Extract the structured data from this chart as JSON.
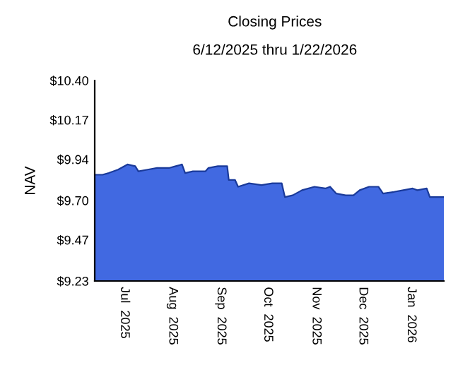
{
  "chart_data": {
    "type": "area",
    "title": "Closing Prices",
    "subtitle": "6/12/2025 thru 1/22/2026",
    "ylabel": "NAV",
    "x": [
      "2025-06-12",
      "2025-06-17",
      "2025-06-21",
      "2025-06-27",
      "2025-07-03",
      "2025-07-08",
      "2025-07-10",
      "2025-07-16",
      "2025-07-22",
      "2025-07-30",
      "2025-08-03",
      "2025-08-07",
      "2025-08-09",
      "2025-08-14",
      "2025-08-22",
      "2025-08-24",
      "2025-08-30",
      "2025-09-05",
      "2025-09-06",
      "2025-09-10",
      "2025-09-12",
      "2025-09-19",
      "2025-09-27",
      "2025-10-04",
      "2025-10-10",
      "2025-10-12",
      "2025-10-17",
      "2025-10-23",
      "2025-10-31",
      "2025-11-07",
      "2025-11-10",
      "2025-11-14",
      "2025-11-20",
      "2025-11-25",
      "2025-11-29",
      "2025-12-05",
      "2025-12-11",
      "2025-12-14",
      "2025-12-21",
      "2025-12-27",
      "2026-01-02",
      "2026-01-05",
      "2026-01-11",
      "2026-01-13",
      "2026-01-18",
      "2026-01-22"
    ],
    "series": [
      {
        "color": "#4169e1",
        "values": [
          9.85,
          9.85,
          9.86,
          9.88,
          9.91,
          9.9,
          9.87,
          9.88,
          9.89,
          9.89,
          9.9,
          9.91,
          9.86,
          9.87,
          9.87,
          9.89,
          9.9,
          9.9,
          9.82,
          9.82,
          9.78,
          9.8,
          9.79,
          9.8,
          9.8,
          9.72,
          9.73,
          9.76,
          9.78,
          9.77,
          9.78,
          9.74,
          9.73,
          9.73,
          9.76,
          9.78,
          9.78,
          9.74,
          9.75,
          9.76,
          9.77,
          9.76,
          9.77,
          9.72,
          9.72,
          9.72
        ]
      }
    ],
    "xlim": [
      "2025-06-12",
      "2026-01-22"
    ],
    "xticks": [
      {
        "value": "2025-07-01",
        "label": "Jul  2025"
      },
      {
        "value": "2025-08-01",
        "label": "Aug  2025"
      },
      {
        "value": "2025-09-01",
        "label": "Sep  2025"
      },
      {
        "value": "2025-10-01",
        "label": "Oct  2025"
      },
      {
        "value": "2025-11-01",
        "label": "Nov  2025"
      },
      {
        "value": "2025-12-01",
        "label": "Dec  2025"
      },
      {
        "value": "2026-01-01",
        "label": "Jan  2026"
      }
    ],
    "ylim": [
      9.23,
      10.4
    ],
    "yticks": [
      {
        "value": 9.23,
        "label": "$9.23"
      },
      {
        "value": 9.47,
        "label": "$9.47"
      },
      {
        "value": 9.7,
        "label": "$9.70"
      },
      {
        "value": 9.94,
        "label": "$9.94"
      },
      {
        "value": 10.17,
        "label": "$10.17"
      },
      {
        "value": 10.4,
        "label": "$10.40"
      }
    ],
    "grid": false,
    "legend": false
  }
}
